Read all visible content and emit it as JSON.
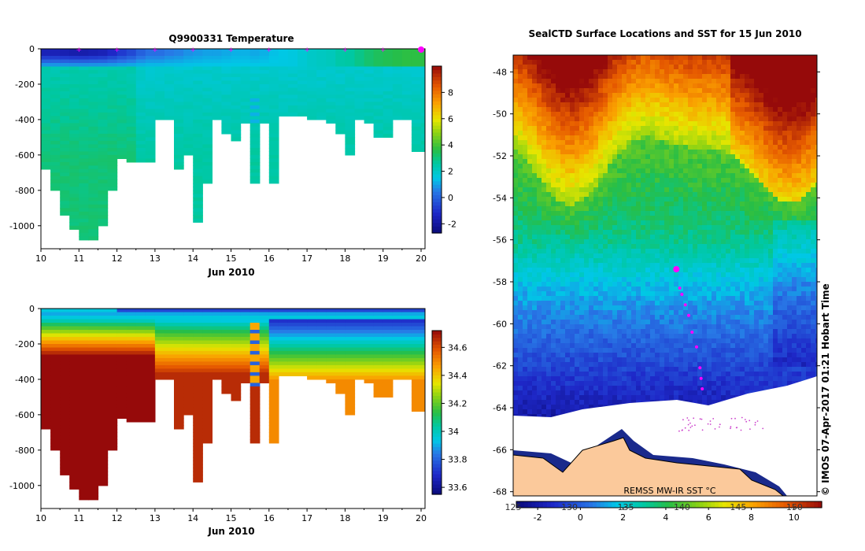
{
  "chart_data": [
    {
      "type": "heatmap",
      "title": "Q9900331  Temperature",
      "xlabel": "Jun 2010",
      "ylabel": "",
      "x_ticks": [
        "10",
        "11",
        "12",
        "13",
        "14",
        "15",
        "16",
        "17",
        "18",
        "19",
        "20"
      ],
      "y_ticks": [
        "0",
        "-200",
        "-400",
        "-600",
        "-800",
        "-1000"
      ],
      "xlim": [
        10,
        20
      ],
      "ylim": [
        -1130,
        0
      ],
      "colorbar_ticks": [
        "-2",
        "0",
        "2",
        "4",
        "6",
        "8"
      ],
      "colorbar_range": [
        -2.7,
        10
      ],
      "profile_times": [
        10.0,
        10.25,
        10.5,
        10.75,
        11.0,
        11.25,
        11.5,
        11.75,
        12.0,
        12.25,
        12.5,
        12.75,
        13.0,
        13.25,
        13.5,
        13.75,
        14.0,
        14.25,
        14.5,
        14.75,
        15.0,
        15.25,
        15.5,
        15.75,
        16.0,
        16.25,
        16.5,
        16.75,
        17.0,
        17.25,
        17.5,
        17.75,
        18.0,
        18.25,
        18.5,
        18.75,
        19.0,
        19.25,
        19.5,
        19.75,
        20.0
      ],
      "profile_max_depth": [
        680,
        790,
        940,
        1010,
        1080,
        1080,
        985,
        800,
        620,
        640,
        640,
        630,
        400,
        400,
        680,
        590,
        980,
        750,
        400,
        470,
        510,
        420,
        750,
        420,
        750,
        380,
        375,
        375,
        400,
        400,
        405,
        470,
        595,
        400,
        415,
        500,
        500,
        400,
        400,
        575,
        575
      ],
      "surface_temp": [
        -1.5,
        -1.5,
        -1.6,
        -1.7,
        -1.7,
        -1.6,
        -1.5,
        -1.2,
        -0.8,
        -0.5,
        0.0,
        0.3,
        0.3,
        0.5,
        0.6,
        0.8,
        0.9,
        1.0,
        1.0,
        1.1,
        1.2,
        1.2,
        1.1,
        1.2,
        1.4,
        1.5,
        1.6,
        1.8,
        2.0,
        2.1,
        2.2,
        2.5,
        2.6,
        2.9,
        3.2,
        3.4,
        3.5,
        3.6,
        3.7,
        3.7,
        3.7
      ],
      "markers_x": [
        11,
        12,
        13,
        14,
        15,
        16,
        17,
        18,
        19,
        20
      ]
    },
    {
      "type": "heatmap",
      "title": "",
      "xlabel": "Jun 2010",
      "ylabel": "",
      "x_ticks": [
        "10",
        "11",
        "12",
        "13",
        "14",
        "15",
        "16",
        "17",
        "18",
        "19",
        "20"
      ],
      "y_ticks": [
        "0",
        "-200",
        "-400",
        "-600",
        "-800",
        "-1000"
      ],
      "xlim": [
        10,
        20
      ],
      "ylim": [
        -1130,
        0
      ],
      "colorbar_ticks": [
        "33.6",
        "33.8",
        "34",
        "34.2",
        "34.4",
        "34.6"
      ],
      "colorbar_range": [
        33.55,
        34.72
      ]
    },
    {
      "type": "heatmap",
      "title": "SealCTD Surface Locations and SST for 15 Jun 2010",
      "y_ticks": [
        "-48",
        "-50",
        "-52",
        "-54",
        "-56",
        "-58",
        "-60",
        "-62",
        "-64",
        "-66",
        "-68"
      ],
      "lat_range": [
        -68.2,
        -47.2
      ],
      "x_ticks_top": [
        "125",
        "130",
        "135",
        "140",
        "145",
        "150"
      ],
      "lon_range": [
        125,
        152
      ],
      "colorbar_ticks": [
        "-2",
        "0",
        "2",
        "4",
        "6",
        "8",
        "10"
      ],
      "colorbar_range": [
        -3,
        11.3
      ],
      "sst_label": "REMSS MW-IR SST °C",
      "track": [
        [
          139.5,
          -57.4
        ],
        [
          139.8,
          -58.3
        ],
        [
          140.0,
          -58.6
        ],
        [
          140.3,
          -59.1
        ],
        [
          140.6,
          -59.6
        ],
        [
          140.9,
          -60.4
        ],
        [
          141.3,
          -61.1
        ],
        [
          141.6,
          -62.1
        ],
        [
          141.7,
          -62.6
        ],
        [
          141.8,
          -63.1
        ]
      ]
    }
  ],
  "footer": {
    "stamp": "IMOS 07-Apr-2017 01:21 Hobart Time",
    "copyright": "©"
  }
}
